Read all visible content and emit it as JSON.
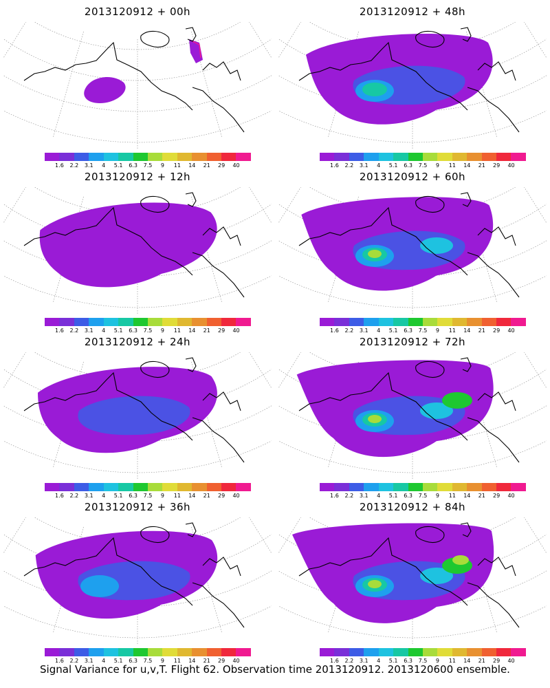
{
  "panels": [
    {
      "title": "2013120912 + 00h",
      "level": 0
    },
    {
      "title": "2013120912 + 48h",
      "level": 3
    },
    {
      "title": "2013120912 + 12h",
      "level": 1
    },
    {
      "title": "2013120912 + 60h",
      "level": 4
    },
    {
      "title": "2013120912 + 24h",
      "level": 1.5
    },
    {
      "title": "2013120912 + 72h",
      "level": 5
    },
    {
      "title": "2013120912 + 36h",
      "level": 2
    },
    {
      "title": "2013120912 + 84h",
      "level": 6
    }
  ],
  "colorbar": {
    "colors": [
      "#9a1bd6",
      "#7a2fd8",
      "#3d5ce6",
      "#1ea0ee",
      "#1ec2e0",
      "#17c8a4",
      "#1ec830",
      "#a8dc3a",
      "#e0dc38",
      "#e0b830",
      "#e89030",
      "#f06030",
      "#f0283c",
      "#f01a90"
    ],
    "ticks": [
      "1.6",
      "2.2",
      "3.1",
      "4",
      "5.1",
      "6.3",
      "7.5",
      "9",
      "11",
      "14",
      "21",
      "29",
      "40"
    ]
  },
  "footer": "Signal Variance for u,v,T. Flight 62. Observation time 2013120912. 2013120600 ensemble."
}
